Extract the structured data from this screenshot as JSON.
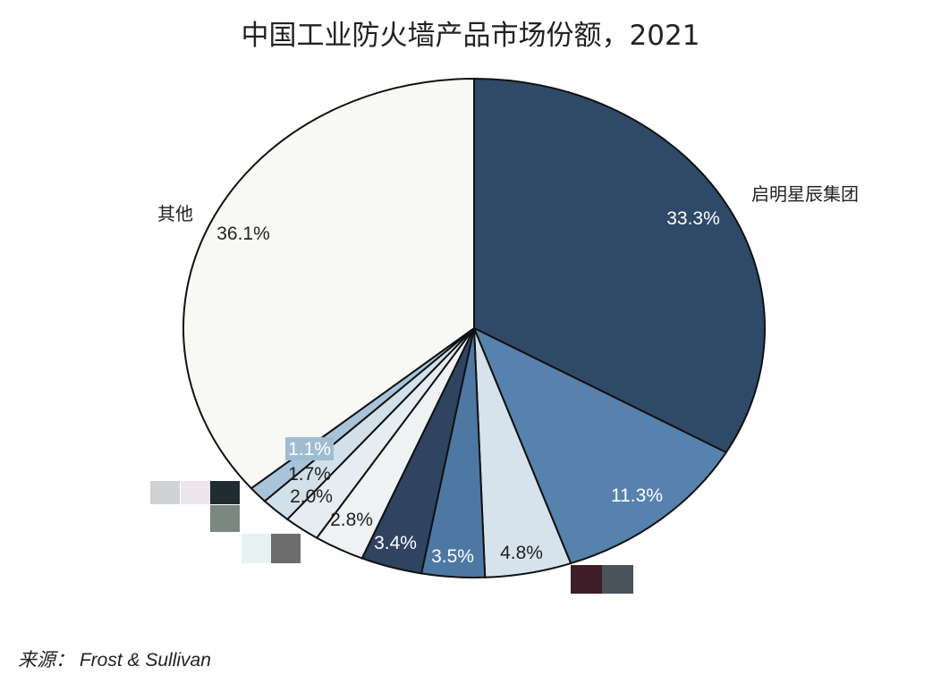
{
  "chart_data": {
    "type": "pie",
    "title": "中国工业防火墙产品市场份额，2021",
    "source": "来源： Frost & Sullivan",
    "slices": [
      {
        "name": "启明星辰集团",
        "value": 33.3,
        "label": "33.3%",
        "color": "#2f4a68"
      },
      {
        "name": "",
        "value": 11.3,
        "label": "11.3%",
        "color": "#5682ad"
      },
      {
        "name": "",
        "value": 4.8,
        "label": "4.8%",
        "color": "#d6e2ec"
      },
      {
        "name": "",
        "value": 3.5,
        "label": "3.5%",
        "color": "#4d78a4"
      },
      {
        "name": "",
        "value": 3.4,
        "label": "3.4%",
        "color": "#2e4460"
      },
      {
        "name": "",
        "value": 2.8,
        "label": "2.8%",
        "color": "#eef2f3"
      },
      {
        "name": "",
        "value": 2.0,
        "label": "2.0%",
        "color": "#e6edf2"
      },
      {
        "name": "",
        "value": 1.7,
        "label": "1.7%",
        "color": "#d2e0ea"
      },
      {
        "name": "",
        "value": 1.1,
        "label": "1.1%",
        "color": "#a7c4da"
      },
      {
        "name": "其他",
        "value": 36.1,
        "label": "36.1%",
        "color": "#f8f8f5"
      }
    ],
    "start": "top",
    "direction": "clockwise",
    "legend": "none"
  }
}
